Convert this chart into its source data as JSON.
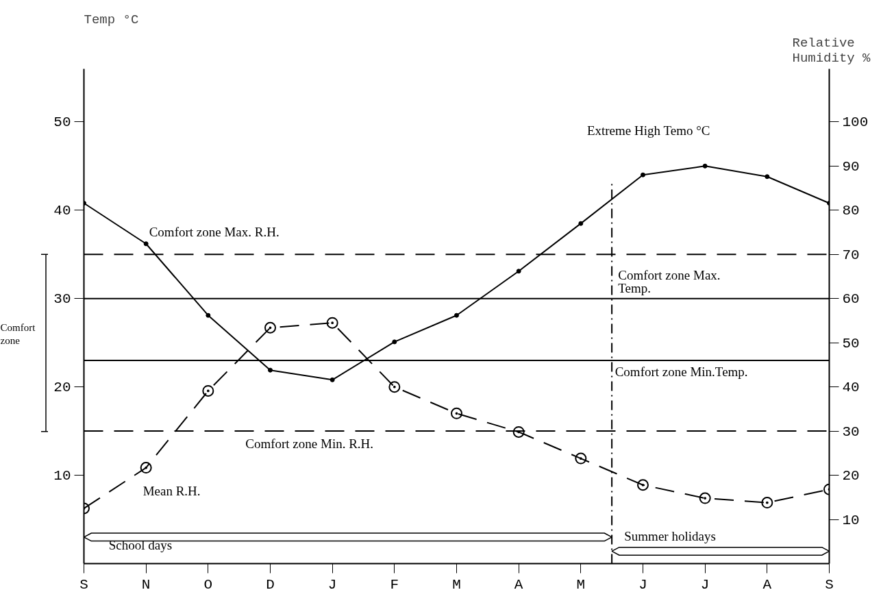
{
  "chart_data": {
    "type": "line",
    "xlabel": null,
    "ylabel": "Temp °C",
    "y2label": "Relative Humidity %",
    "categories": [
      "S",
      "N",
      "O",
      "D",
      "J",
      "F",
      "M",
      "A",
      "M",
      "J",
      "J",
      "A",
      "S"
    ],
    "series": [
      {
        "name": "Extreme High Temo °C",
        "color": "#000000",
        "marker": "circle",
        "line_style": "solid",
        "values": [
          40.8,
          36.2,
          28.1,
          21.9,
          20.8,
          25.1,
          28.1,
          33.1,
          38.5,
          44.0,
          45.0,
          43.8,
          40.8
        ]
      },
      {
        "name": "Mean R.H.",
        "color": "#000000",
        "marker": "circle",
        "line_style": "dashed",
        "axis": "y2",
        "values": [
          12.5,
          21.7,
          39.1,
          53.4,
          54.5,
          40,
          34,
          29.8,
          23.8,
          17.8,
          14.8,
          13.8,
          16.8
        ]
      }
    ],
    "ylim": [
      0,
      56
    ],
    "yticks": [
      10,
      20,
      30,
      40,
      50
    ],
    "y2lim": [
      0,
      112
    ],
    "y2ticks": [
      10,
      20,
      30,
      40,
      50,
      60,
      70,
      80,
      90,
      100
    ],
    "ref_lines": [
      {
        "axis": "y",
        "value": 30,
        "label": "Comfort zone Max. Temp.",
        "line_style": "solid",
        "color": "#000000"
      },
      {
        "axis": "y",
        "value": 23,
        "label": "Comfort zone Min.Temp.",
        "line_style": "solid",
        "color": "#000000"
      },
      {
        "axis": "y2",
        "value": 70,
        "label": "Comfort zone Max. R.H.",
        "line_style": "dashed",
        "color": "#000000"
      },
      {
        "axis": "y2",
        "value": 30,
        "label": "Comfort zone Min. R.H.",
        "line_style": "dashed",
        "color": "#000000"
      }
    ],
    "annotations": [
      "School days",
      "Summer holidays",
      "Comfort zone"
    ],
    "grid": false,
    "legend": false
  }
}
